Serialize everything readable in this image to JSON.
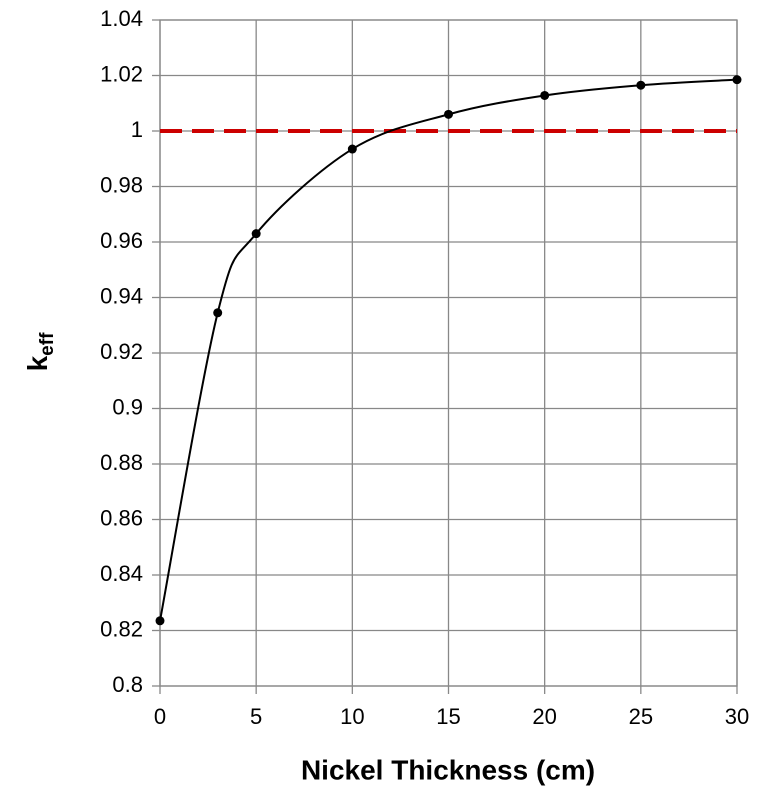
{
  "chart_data": {
    "type": "line",
    "x_label": "Nickel Thickness (cm)",
    "y_label": {
      "text": "k",
      "subscript": "eff"
    },
    "x": [
      0,
      3,
      5,
      10,
      15,
      20,
      25,
      30
    ],
    "series": [
      {
        "color": "#000000",
        "values": [
          0.8235,
          0.9345,
          0.963,
          0.9935,
          1.006,
          1.0128,
          1.0165,
          1.0185
        ]
      }
    ],
    "reference_line": {
      "value": 1,
      "color": "#cc0000",
      "dashed": true
    },
    "smooth": true,
    "xlim": [
      0,
      30
    ],
    "xticks": [
      0,
      5,
      10,
      15,
      20,
      25,
      30
    ],
    "ylim": [
      0.8,
      1.04
    ],
    "yticks": [
      0.8,
      0.82,
      0.84,
      0.86,
      0.88,
      0.9,
      0.92,
      0.94,
      0.96,
      0.98,
      1,
      1.02,
      1.04
    ],
    "grid": true
  }
}
